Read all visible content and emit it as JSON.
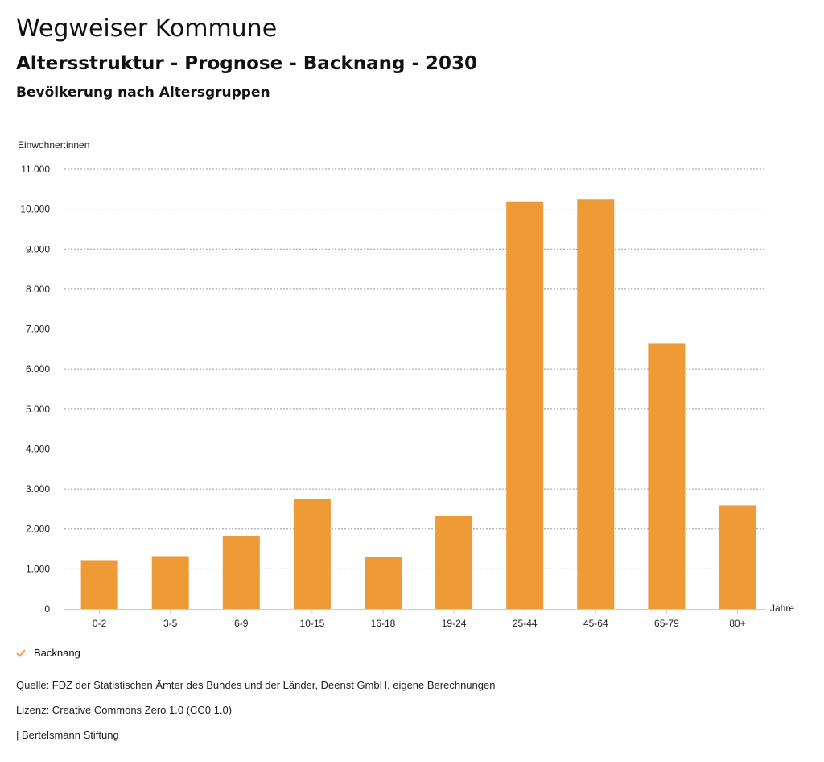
{
  "header": {
    "title": "Wegweiser Kommune",
    "subtitle": "Altersstruktur - Prognose - Backnang - 2030",
    "section": "Bevölkerung nach Altersgruppen"
  },
  "legend": {
    "label": "Backnang",
    "icon": "check-icon"
  },
  "footer": {
    "source": "Quelle: FDZ der Statistischen Ämter des Bundes und der Länder, Deenst GmbH, eigene Berechnungen",
    "license": "Lizenz: Creative Commons Zero 1.0 (CC0 1.0)",
    "publisher": "| Bertelsmann Stiftung"
  },
  "colors": {
    "bar": "#ee9a37",
    "grid": "#999999"
  },
  "chart_data": {
    "type": "bar",
    "ylabel": "Einwohner:innen",
    "xlabel": "Jahre",
    "categories": [
      "0-2",
      "3-5",
      "6-9",
      "10-15",
      "16-18",
      "19-24",
      "25-44",
      "45-64",
      "65-79",
      "80+"
    ],
    "series": [
      {
        "name": "Backnang",
        "values": [
          1220,
          1320,
          1820,
          2750,
          1300,
          2330,
          10180,
          10250,
          6640,
          2590
        ]
      }
    ],
    "ylim": [
      0,
      11000
    ],
    "yticks": [
      0,
      1000,
      2000,
      3000,
      4000,
      5000,
      6000,
      7000,
      8000,
      9000,
      10000,
      11000
    ],
    "ytick_labels": [
      "0",
      "1.000",
      "2.000",
      "3.000",
      "4.000",
      "5.000",
      "6.000",
      "7.000",
      "8.000",
      "9.000",
      "10.000",
      "11.000"
    ],
    "grid": true,
    "legend_position": "bottom-left"
  }
}
